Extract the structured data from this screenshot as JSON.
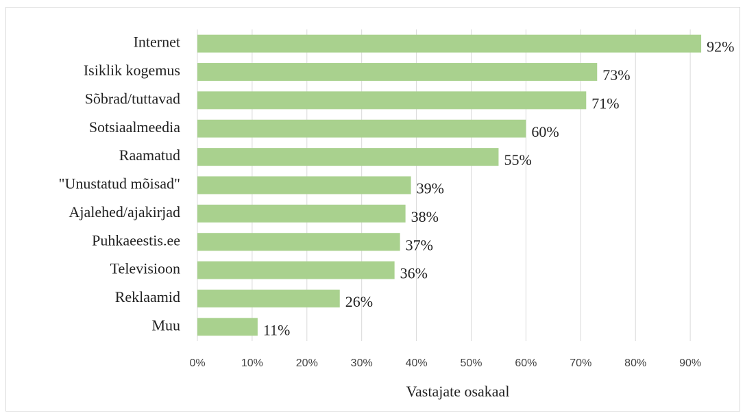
{
  "chart_data": {
    "type": "bar",
    "orientation": "horizontal",
    "x_label": "Vastajate osakaal",
    "categories": [
      "Internet",
      "Isiklik kogemus",
      "Sõbrad/tuttavad",
      "Sotsiaalmeedia",
      "Raamatud",
      "\"Unustatud mõisad\"",
      "Ajalehed/ajakirjad",
      "Puhkaeestis.ee",
      "Televisioon",
      "Reklaamid",
      "Muu"
    ],
    "values": [
      92,
      73,
      71,
      60,
      55,
      39,
      38,
      37,
      36,
      26,
      11
    ],
    "value_labels": [
      "92%",
      "73%",
      "71%",
      "60%",
      "55%",
      "39%",
      "38%",
      "37%",
      "36%",
      "26%",
      "11%"
    ],
    "color": "#a9d18e",
    "xlim": [
      0,
      95
    ],
    "xticks": [
      {
        "value": 0,
        "label": "0%"
      },
      {
        "value": 10,
        "label": "10%"
      },
      {
        "value": 20,
        "label": "20%"
      },
      {
        "value": 30,
        "label": "30%"
      },
      {
        "value": 40,
        "label": "40%"
      },
      {
        "value": 50,
        "label": "50%"
      },
      {
        "value": 60,
        "label": "60%"
      },
      {
        "value": 70,
        "label": "70%"
      },
      {
        "value": 80,
        "label": "80%"
      },
      {
        "value": 90,
        "label": "90%"
      }
    ],
    "grid": true
  }
}
